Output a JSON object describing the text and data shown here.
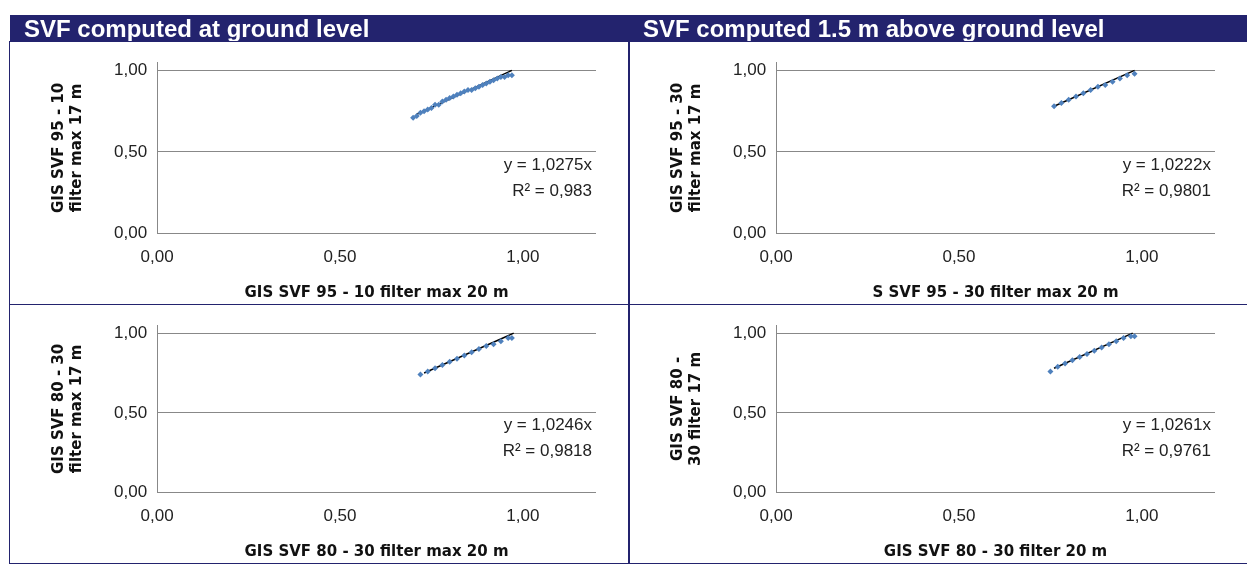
{
  "chart_data": [
    {
      "type": "scatter",
      "title": "SVF computed at ground level",
      "xlabel": "GIS SVF 95 - 10 filter max 20 m",
      "ylabel": "GIS SVF 95 - 10 filter max 17 m",
      "xlim": [
        0,
        1.2
      ],
      "ylim": [
        0,
        1.05
      ],
      "xticks": [
        {
          "value": 0,
          "label": "0,00"
        },
        {
          "value": 0.5,
          "label": "0,50"
        },
        {
          "value": 1,
          "label": "1,00"
        }
      ],
      "yticks": [
        {
          "value": 0,
          "label": "0,00"
        },
        {
          "value": 0.5,
          "label": "0,50"
        },
        {
          "value": 1,
          "label": "1,00"
        }
      ],
      "grid": "y",
      "legend": false,
      "annotations": [
        "y = 1,0275x",
        "R² = 0,983"
      ],
      "series": [
        {
          "type": "scatter",
          "color": "#4f81bd",
          "marker": "diamond",
          "x": [
            0.7,
            0.71,
            0.72,
            0.73,
            0.74,
            0.75,
            0.76,
            0.77,
            0.78,
            0.79,
            0.8,
            0.81,
            0.82,
            0.83,
            0.84,
            0.85,
            0.86,
            0.87,
            0.88,
            0.89,
            0.9,
            0.91,
            0.92,
            0.93,
            0.94,
            0.95,
            0.96,
            0.97
          ],
          "values": [
            0.71,
            0.72,
            0.74,
            0.75,
            0.76,
            0.77,
            0.79,
            0.79,
            0.81,
            0.82,
            0.83,
            0.84,
            0.85,
            0.86,
            0.87,
            0.88,
            0.88,
            0.89,
            0.9,
            0.91,
            0.92,
            0.93,
            0.94,
            0.95,
            0.96,
            0.96,
            0.97,
            0.97
          ]
        },
        {
          "type": "line",
          "color": "#000000",
          "marker": "none",
          "x": [
            0.71,
            0.97
          ],
          "values": [
            0.73,
            1.0
          ]
        }
      ]
    },
    {
      "type": "scatter",
      "title": "SVF computed 1.5 m above ground level",
      "xlabel": "S SVF 95 - 30 filter max 20 m",
      "ylabel": "GIS SVF 95 - 30 filter max 17 m",
      "xlim": [
        0,
        1.2
      ],
      "ylim": [
        0,
        1.05
      ],
      "xticks": [
        {
          "value": 0,
          "label": "0,00"
        },
        {
          "value": 0.5,
          "label": "0,50"
        },
        {
          "value": 1,
          "label": "1,00"
        }
      ],
      "yticks": [
        {
          "value": 0,
          "label": "0,00"
        },
        {
          "value": 0.5,
          "label": "0,50"
        },
        {
          "value": 1,
          "label": "1,00"
        }
      ],
      "grid": "y",
      "legend": false,
      "annotations": [
        "y = 1,0222x",
        "R² = 0,9801"
      ],
      "series": [
        {
          "type": "scatter",
          "color": "#4f81bd",
          "marker": "diamond",
          "x": [
            0.76,
            0.78,
            0.8,
            0.82,
            0.84,
            0.86,
            0.88,
            0.9,
            0.92,
            0.94,
            0.96,
            0.98
          ],
          "values": [
            0.78,
            0.8,
            0.82,
            0.84,
            0.86,
            0.88,
            0.9,
            0.91,
            0.93,
            0.95,
            0.97,
            0.98
          ]
        },
        {
          "type": "line",
          "color": "#000000",
          "marker": "none",
          "x": [
            0.76,
            0.98
          ],
          "values": [
            0.78,
            1.0
          ]
        }
      ]
    },
    {
      "type": "scatter",
      "xlabel": "GIS SVF 80 - 30 filter max 20 m",
      "ylabel": "GIS SVF 80 - 30 filter max 17 m",
      "xlim": [
        0,
        1.2
      ],
      "ylim": [
        0,
        1.05
      ],
      "xticks": [
        {
          "value": 0,
          "label": "0,00"
        },
        {
          "value": 0.5,
          "label": "0,50"
        },
        {
          "value": 1,
          "label": "1,00"
        }
      ],
      "yticks": [
        {
          "value": 0,
          "label": "0,00"
        },
        {
          "value": 0.5,
          "label": "0,50"
        },
        {
          "value": 1,
          "label": "1,00"
        }
      ],
      "grid": "y",
      "legend": false,
      "annotations": [
        "y = 1,0246x",
        "R² = 0,9818"
      ],
      "series": [
        {
          "type": "scatter",
          "color": "#4f81bd",
          "marker": "diamond",
          "x": [
            0.72,
            0.74,
            0.76,
            0.78,
            0.8,
            0.82,
            0.84,
            0.86,
            0.88,
            0.9,
            0.92,
            0.94,
            0.96,
            0.97
          ],
          "values": [
            0.74,
            0.76,
            0.78,
            0.8,
            0.82,
            0.84,
            0.86,
            0.88,
            0.9,
            0.92,
            0.93,
            0.95,
            0.97,
            0.97
          ]
        },
        {
          "type": "line",
          "color": "#000000",
          "marker": "none",
          "x": [
            0.73,
            0.975
          ],
          "values": [
            0.75,
            1.0
          ]
        }
      ]
    },
    {
      "type": "scatter",
      "xlabel": "GIS SVF 80 - 30 filter 20 m",
      "ylabel": "GIS SVF 80 - 30 filter 17 m",
      "xlim": [
        0,
        1.2
      ],
      "ylim": [
        0,
        1.05
      ],
      "xticks": [
        {
          "value": 0,
          "label": "0,00"
        },
        {
          "value": 0.5,
          "label": "0,50"
        },
        {
          "value": 1,
          "label": "1,00"
        }
      ],
      "yticks": [
        {
          "value": 0,
          "label": "0,00"
        },
        {
          "value": 0.5,
          "label": "0,50"
        },
        {
          "value": 1,
          "label": "1,00"
        }
      ],
      "grid": "y",
      "legend": false,
      "annotations": [
        "y = 1,0261x",
        "R² = 0,9761"
      ],
      "series": [
        {
          "type": "scatter",
          "color": "#4f81bd",
          "marker": "diamond",
          "x": [
            0.75,
            0.77,
            0.79,
            0.81,
            0.83,
            0.85,
            0.87,
            0.89,
            0.91,
            0.93,
            0.95,
            0.97,
            0.98
          ],
          "values": [
            0.76,
            0.79,
            0.81,
            0.83,
            0.85,
            0.87,
            0.89,
            0.91,
            0.93,
            0.95,
            0.97,
            0.98,
            0.98
          ]
        },
        {
          "type": "line",
          "color": "#000000",
          "marker": "none",
          "x": [
            0.76,
            0.975
          ],
          "values": [
            0.78,
            1.0
          ]
        }
      ]
    }
  ]
}
